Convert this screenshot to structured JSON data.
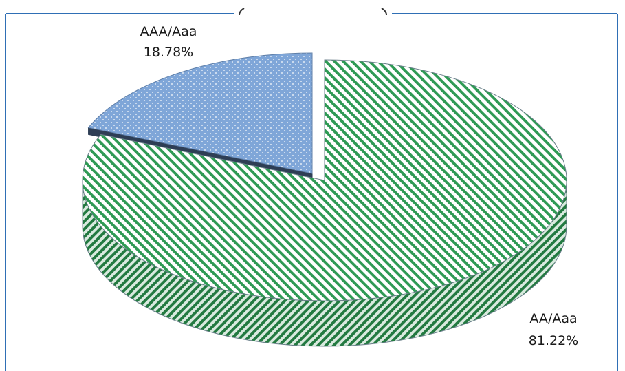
{
  "chart_data": {
    "type": "pie",
    "title": "",
    "categories": [
      "AAA/Aaa",
      "AA/Aaa"
    ],
    "values": [
      18.78,
      81.22
    ],
    "unit": "%",
    "labels": [
      {
        "name": "AAA/Aaa",
        "value_text": "18.78%"
      },
      {
        "name": "AA/Aaa",
        "value_text": "81.22%"
      }
    ],
    "style": "3d-exploded",
    "colors": {
      "aaa_fill": "#7fa6d8",
      "aaa_dot": "#ffffff",
      "aa_fill": "#ffffff",
      "aa_hatch": "#2f9a55",
      "aa_side": "#237a41",
      "aaa_edge": "#2e3e55",
      "frame": "#2f6fb5"
    },
    "legend": "none",
    "grid": false
  }
}
